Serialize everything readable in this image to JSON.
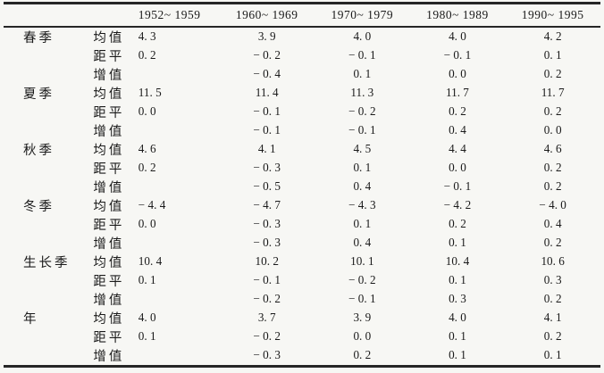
{
  "page": {
    "kind": "scanned journal table",
    "background_color": "#f7f7f4",
    "text_color": "#1a1a1a",
    "rule_color": "#262626"
  },
  "chart_data": {
    "type": "table",
    "columns": [
      "1952~ 1959",
      "1960~ 1969",
      "1970~ 1979",
      "1980~ 1989",
      "1990~ 1995"
    ],
    "corner_labels": [
      "",
      ""
    ],
    "stat_row_labels": [
      "均值",
      "距平",
      "增值"
    ],
    "groups": [
      {
        "season": "春季",
        "rows": [
          {
            "label": "均值",
            "values": [
              4.3,
              3.9,
              4.0,
              4.0,
              4.2
            ]
          },
          {
            "label": "距平",
            "values": [
              0.2,
              -0.2,
              -0.1,
              -0.1,
              0.1
            ]
          },
          {
            "label": "增值",
            "values": [
              null,
              -0.4,
              0.1,
              0.0,
              0.2
            ]
          }
        ]
      },
      {
        "season": "夏季",
        "rows": [
          {
            "label": "均值",
            "values": [
              11.5,
              11.4,
              11.3,
              11.7,
              11.7
            ]
          },
          {
            "label": "距平",
            "values": [
              0.0,
              -0.1,
              -0.2,
              0.2,
              0.2
            ]
          },
          {
            "label": "增值",
            "values": [
              null,
              -0.1,
              -0.1,
              0.4,
              0.0
            ]
          }
        ]
      },
      {
        "season": "秋季",
        "rows": [
          {
            "label": "均值",
            "values": [
              4.6,
              4.1,
              4.5,
              4.4,
              4.6
            ]
          },
          {
            "label": "距平",
            "values": [
              0.2,
              -0.3,
              0.1,
              0.0,
              0.2
            ]
          },
          {
            "label": "增值",
            "values": [
              null,
              -0.5,
              0.4,
              -0.1,
              0.2
            ]
          }
        ]
      },
      {
        "season": "冬季",
        "rows": [
          {
            "label": "均值",
            "values": [
              -4.4,
              -4.7,
              -4.3,
              -4.2,
              -4.0
            ]
          },
          {
            "label": "距平",
            "values": [
              0.0,
              -0.3,
              0.1,
              0.2,
              0.4
            ]
          },
          {
            "label": "增值",
            "values": [
              null,
              -0.3,
              0.4,
              0.1,
              0.2
            ]
          }
        ]
      },
      {
        "season": "生长季",
        "rows": [
          {
            "label": "均值",
            "values": [
              10.4,
              10.2,
              10.1,
              10.4,
              10.6
            ]
          },
          {
            "label": "距平",
            "values": [
              0.1,
              -0.1,
              -0.2,
              0.1,
              0.3
            ]
          },
          {
            "label": "增值",
            "values": [
              null,
              -0.2,
              -0.1,
              0.3,
              0.2
            ]
          }
        ]
      },
      {
        "season": "年",
        "rows": [
          {
            "label": "均值",
            "values": [
              4.0,
              3.7,
              3.9,
              4.0,
              4.1
            ]
          },
          {
            "label": "距平",
            "values": [
              0.1,
              -0.2,
              0.0,
              0.1,
              0.2
            ]
          },
          {
            "label": "增值",
            "values": [
              null,
              -0.3,
              0.2,
              0.1,
              0.1
            ]
          }
        ]
      }
    ],
    "number_format": {
      "decimals": 1,
      "minus_sign": "− ",
      "decimal_rendering": ". "
    },
    "layout_hints": {
      "style": "three-line table (top rule, header rule, bottom rule), no vertical rules",
      "blank_cells": "增值 rows have no value in the 1952~1959 column"
    }
  }
}
